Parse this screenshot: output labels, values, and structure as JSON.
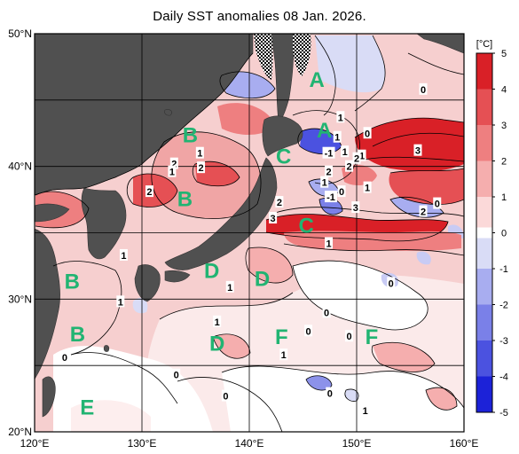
{
  "title": "Daily SST anomalies 08 Jan. 2026.",
  "lat_labels": [
    "50°N",
    "40°N",
    "30°N",
    "20°N"
  ],
  "lon_labels": [
    "120°E",
    "130°E",
    "140°E",
    "150°E",
    "160°E"
  ],
  "colorbar": {
    "unit": "[°C]",
    "labels": [
      "5",
      "4",
      "3",
      "2",
      "1",
      "0",
      "-1",
      "-2",
      "-3",
      "-4",
      "-5"
    ],
    "colors": [
      "#d92027",
      "#e55054",
      "#ee7f80",
      "#f5aeae",
      "#fbd9d9",
      "#ffffff",
      "#d9dcf6",
      "#a8adf0",
      "#7a80e8",
      "#4b52e0",
      "#1c22d8"
    ]
  },
  "zones": [
    {
      "label": "A",
      "lon": 146.3,
      "lat": 46.6
    },
    {
      "label": "A",
      "lon": 147.0,
      "lat": 42.8
    },
    {
      "label": "B",
      "lon": 134.5,
      "lat": 42.4
    },
    {
      "label": "B",
      "lon": 134.0,
      "lat": 37.6
    },
    {
      "label": "B",
      "lon": 123.5,
      "lat": 31.4
    },
    {
      "label": "B",
      "lon": 124.0,
      "lat": 27.4
    },
    {
      "label": "C",
      "lon": 143.2,
      "lat": 40.8
    },
    {
      "label": "C",
      "lon": 145.3,
      "lat": 35.6
    },
    {
      "label": "D",
      "lon": 136.5,
      "lat": 32.2
    },
    {
      "label": "D",
      "lon": 141.2,
      "lat": 31.6
    },
    {
      "label": "D",
      "lon": 137.0,
      "lat": 26.7
    },
    {
      "label": "E",
      "lon": 124.9,
      "lat": 21.9
    },
    {
      "label": "F",
      "lon": 143.0,
      "lat": 27.2
    },
    {
      "label": "F",
      "lon": 151.4,
      "lat": 27.2
    }
  ],
  "contour_labels": [
    {
      "text": "0",
      "lon": 156.2,
      "lat": 45.8
    },
    {
      "text": "1",
      "lon": 148.5,
      "lat": 43.7
    },
    {
      "text": "0",
      "lon": 151.0,
      "lat": 42.5
    },
    {
      "text": "1",
      "lon": 148.2,
      "lat": 42.2
    },
    {
      "text": "-1",
      "lon": 147.4,
      "lat": 41.0
    },
    {
      "text": "1",
      "lon": 148.9,
      "lat": 41.1
    },
    {
      "text": "1",
      "lon": 150.5,
      "lat": 40.8
    },
    {
      "text": "3",
      "lon": 155.7,
      "lat": 41.2
    },
    {
      "text": "2",
      "lon": 150.0,
      "lat": 40.6
    },
    {
      "text": "1",
      "lon": 135.4,
      "lat": 41.0
    },
    {
      "text": "2",
      "lon": 133.0,
      "lat": 40.2
    },
    {
      "text": "2",
      "lon": 135.5,
      "lat": 39.9
    },
    {
      "text": "1",
      "lon": 132.8,
      "lat": 39.6
    },
    {
      "text": "2",
      "lon": 147.4,
      "lat": 39.6
    },
    {
      "text": "2",
      "lon": 149.3,
      "lat": 40.0
    },
    {
      "text": "1",
      "lon": 147.0,
      "lat": 38.8
    },
    {
      "text": "2",
      "lon": 130.7,
      "lat": 38.1
    },
    {
      "text": "0",
      "lon": 148.6,
      "lat": 38.1
    },
    {
      "text": "1",
      "lon": 151.0,
      "lat": 38.4
    },
    {
      "text": "-1",
      "lon": 147.6,
      "lat": 37.7
    },
    {
      "text": "2",
      "lon": 142.8,
      "lat": 37.3
    },
    {
      "text": "3",
      "lon": 149.9,
      "lat": 36.9
    },
    {
      "text": "2",
      "lon": 156.2,
      "lat": 36.6
    },
    {
      "text": "0",
      "lon": 157.5,
      "lat": 37.2
    },
    {
      "text": "3",
      "lon": 142.2,
      "lat": 36.1
    },
    {
      "text": "1",
      "lon": 147.4,
      "lat": 34.2
    },
    {
      "text": "1",
      "lon": 128.3,
      "lat": 33.3
    },
    {
      "text": "1",
      "lon": 138.2,
      "lat": 30.9
    },
    {
      "text": "0",
      "lon": 153.2,
      "lat": 31.2
    },
    {
      "text": "1",
      "lon": 128.0,
      "lat": 29.8
    },
    {
      "text": "1",
      "lon": 137.0,
      "lat": 28.3
    },
    {
      "text": "0",
      "lon": 147.2,
      "lat": 29.0
    },
    {
      "text": "0",
      "lon": 145.5,
      "lat": 27.6
    },
    {
      "text": "0",
      "lon": 149.3,
      "lat": 27.2
    },
    {
      "text": "1",
      "lon": 143.2,
      "lat": 25.8
    },
    {
      "text": "0",
      "lon": 122.8,
      "lat": 25.6
    },
    {
      "text": "0",
      "lon": 133.2,
      "lat": 24.3
    },
    {
      "text": "0",
      "lon": 137.8,
      "lat": 22.7
    },
    {
      "text": "0",
      "lon": 147.5,
      "lat": 22.9
    },
    {
      "text": "1",
      "lon": 150.8,
      "lat": 21.6
    }
  ]
}
